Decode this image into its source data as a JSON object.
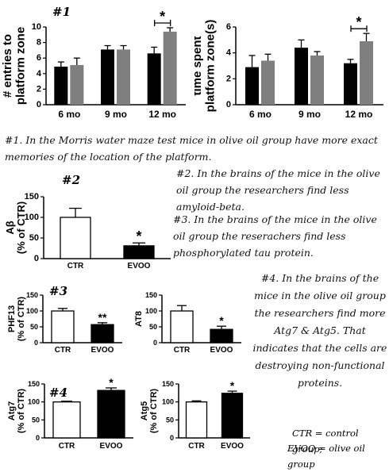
{
  "panel_numbers": {
    "p1": "#1",
    "p2": "#2",
    "p3": "#3",
    "p4": "#4"
  },
  "notes": {
    "n1": "#1. In the Morris water maze test mice in olive oil group have more exact memories of the location of the platform.",
    "n2": "#2. In the brains of the mice in the olive oil group the researchers find less amyloid-beta.",
    "n3": "#3. In the brains of the mice in the olive oil group the reserachers find less phosphorylated tau protein.",
    "n4": "#4. In the brains of the mice in the olive oil group the researchers find more Atg7 & Atg5. That indicates that the cells are destroying non-functional proteins.",
    "legend_ctr": "CTR = control group;",
    "legend_evoo": "EVOO = olive oil group"
  },
  "colors": {
    "ctr_dark": "#000000",
    "evoo_gray": "#7f7f7f",
    "ctr_white": "#ffffff",
    "evoo_black": "#000000"
  },
  "chart_data": [
    {
      "id": "entries",
      "type": "bar",
      "ylabel": "# entries to platform zone",
      "categories": [
        "6 mo",
        "9 mo",
        "12 mo"
      ],
      "ylim": [
        0,
        10
      ],
      "ticks": [
        0,
        2,
        4,
        6,
        8,
        10
      ],
      "series": [
        {
          "values": [
            4.9,
            7.1,
            6.6
          ],
          "err": [
            0.6,
            0.5,
            0.8
          ],
          "color": "#000000"
        },
        {
          "values": [
            5.1,
            7.1,
            9.4
          ],
          "err": [
            0.9,
            0.5,
            0.5
          ],
          "color": "#7f7f7f"
        }
      ],
      "significance": [
        {
          "category": "12 mo",
          "label": "*"
        }
      ]
    },
    {
      "id": "time",
      "type": "bar",
      "ylabel": "time spent platform zone(s)",
      "categories": [
        "6 mo",
        "9 mo",
        "12 mo"
      ],
      "ylim": [
        0,
        6
      ],
      "ticks": [
        0,
        2,
        4,
        6
      ],
      "series": [
        {
          "values": [
            2.9,
            4.4,
            3.2
          ],
          "err": [
            0.9,
            0.6,
            0.3
          ],
          "color": "#000000"
        },
        {
          "values": [
            3.4,
            3.8,
            4.9
          ],
          "err": [
            0.5,
            0.3,
            0.6
          ],
          "color": "#7f7f7f"
        }
      ],
      "significance": [
        {
          "category": "12 mo",
          "label": "*"
        }
      ]
    },
    {
      "id": "abeta",
      "type": "bar",
      "ylabel": "Aβ (% of CTR)",
      "categories": [
        "CTR",
        "EVOO"
      ],
      "ylim": [
        0,
        150
      ],
      "ticks": [
        0,
        50,
        100,
        150
      ],
      "values": [
        100,
        31
      ],
      "err": [
        22,
        7
      ],
      "fills": [
        "#ffffff",
        "#000000"
      ],
      "stars": [
        "",
        "*"
      ]
    },
    {
      "id": "phf13",
      "type": "bar",
      "ylabel": "PHF13 (% of CTR)",
      "categories": [
        "CTR",
        "EVOO"
      ],
      "ylim": [
        0,
        150
      ],
      "ticks": [
        0,
        50,
        100,
        150
      ],
      "values": [
        100,
        57
      ],
      "err": [
        8,
        6
      ],
      "fills": [
        "#ffffff",
        "#000000"
      ],
      "stars": [
        "",
        "**"
      ]
    },
    {
      "id": "at8",
      "type": "bar",
      "ylabel": "AT8",
      "categories": [
        "CTR",
        "EVOO"
      ],
      "ylim": [
        0,
        150
      ],
      "ticks": [
        0,
        50,
        100,
        150
      ],
      "values": [
        100,
        42
      ],
      "err": [
        17,
        10
      ],
      "fills": [
        "#ffffff",
        "#000000"
      ],
      "stars": [
        "",
        "*"
      ]
    },
    {
      "id": "atg7",
      "type": "bar",
      "ylabel": "Atg7 (% of CTR)",
      "categories": [
        "CTR",
        "EVOO"
      ],
      "ylim": [
        0,
        150
      ],
      "ticks": [
        0,
        50,
        100,
        150
      ],
      "values": [
        100,
        132
      ],
      "err": [
        2,
        7
      ],
      "fills": [
        "#ffffff",
        "#000000"
      ],
      "stars": [
        "",
        "*"
      ]
    },
    {
      "id": "atg5",
      "type": "bar",
      "ylabel": "Atg5 (% of CTR)",
      "categories": [
        "CTR",
        "EVOO"
      ],
      "ylim": [
        0,
        150
      ],
      "ticks": [
        0,
        50,
        100,
        150
      ],
      "values": [
        100,
        124
      ],
      "err": [
        3,
        6
      ],
      "fills": [
        "#ffffff",
        "#000000"
      ],
      "stars": [
        "",
        "*"
      ]
    }
  ]
}
